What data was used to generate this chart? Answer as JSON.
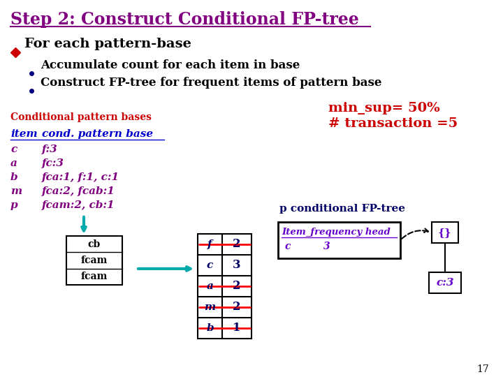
{
  "title": "Step 2: Construct Conditional FP-tree",
  "title_color": "#800080",
  "bullet1": "For each pattern-base",
  "bullet1_color": "#000000",
  "sub1": "Accumulate count for each item in base",
  "sub2": "Construct FP-tree for frequent items of pattern base",
  "sub_color": "#000000",
  "min_sup": "min_sup= 50%",
  "n_trans": "# transaction =5",
  "cond_label": "Conditional pattern bases",
  "cond_label_color": "#cc0000",
  "col1_header": "item",
  "col2_header": "cond. pattern base",
  "header_color": "#0000cc",
  "table_rows": [
    [
      "c",
      "f:3"
    ],
    [
      "a",
      "fc:3"
    ],
    [
      "b",
      "fca:1, f:1, c:1"
    ],
    [
      "m",
      "fca:2, fcab:1"
    ],
    [
      "p",
      "fcam:2, cb:1"
    ]
  ],
  "table_color": "#800080",
  "pattern_base_label": "p conditional FP-tree",
  "fp_table_items": [
    "f",
    "c",
    "a",
    "m",
    "b"
  ],
  "fp_table_counts": [
    2,
    3,
    2,
    2,
    1
  ],
  "fp_table_strikethrough": [
    true,
    false,
    true,
    true,
    true
  ],
  "freq_head_label": "Item_frequency head",
  "freq_head_row": [
    "c",
    "3"
  ],
  "freq_head_color": "#6600cc",
  "tree_root": "{}",
  "tree_node": "c:3",
  "tree_color": "#6600cc",
  "pattern_base_color": "#000066",
  "arrow_color": "#00aaaa",
  "box_items": [
    "fcam",
    "fcam",
    "cb"
  ],
  "page_num": "17"
}
